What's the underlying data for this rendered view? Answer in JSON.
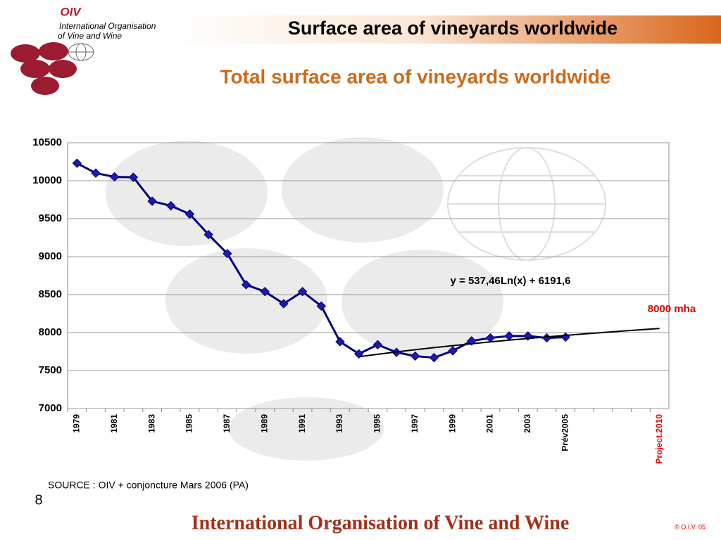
{
  "header": {
    "logo": "OIV",
    "org_line1": "International Organisation",
    "org_line2": "of  Vine  and  Wine",
    "title": "Surface area of vineyards worldwide"
  },
  "chart_data": {
    "type": "line",
    "title": "Total surface area of vineyards worldwide",
    "categories": [
      "1979",
      null,
      "1981",
      null,
      "1983",
      null,
      "1985",
      null,
      "1987",
      null,
      "1989",
      null,
      "1991",
      null,
      "1993",
      null,
      "1995",
      null,
      "1997",
      null,
      "1999",
      null,
      "2001",
      null,
      "2003",
      null,
      "Prév2005",
      null,
      null,
      null,
      null,
      "Project.2010"
    ],
    "series": [
      {
        "color": "#000080",
        "values": [
          10230,
          10100,
          10050,
          10045,
          9730,
          9670,
          9560,
          9290,
          9040,
          8630,
          8540,
          8380,
          8540,
          8350,
          7880,
          7720,
          7840,
          7740,
          7690,
          7670,
          7760,
          7890,
          7930,
          7955,
          7955,
          7930,
          7940,
          null,
          null,
          null,
          null,
          null
        ]
      },
      {
        "name": "y = 537,46Ln(x) + 6191,6",
        "color": "#000000",
        "values": [
          null,
          null,
          null,
          null,
          null,
          null,
          null,
          null,
          null,
          null,
          null,
          null,
          null,
          null,
          null,
          7682,
          7714,
          7745,
          7774,
          7802,
          7828,
          7853,
          7877,
          7900,
          7922,
          7943,
          7963,
          7983,
          8001,
          8020,
          8037,
          8054
        ]
      }
    ],
    "annotation": "8000 mha",
    "ylim": [
      7000,
      10500
    ],
    "yticks": [
      7000,
      7500,
      8000,
      8500,
      9000,
      9500,
      10000,
      10500
    ],
    "grid": true
  },
  "source": "SOURCE : OIV  + conjoncture Mars 2006 (PA)",
  "page_number": "8",
  "footer": "International Organisation of Vine and Wine",
  "copyright": "© O.I.V. 05"
}
